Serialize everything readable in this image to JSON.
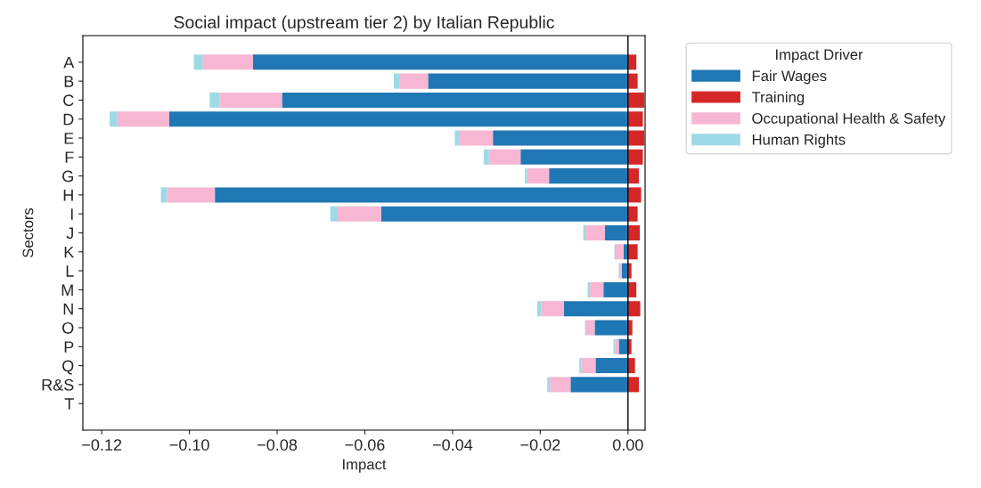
{
  "chart_data": {
    "type": "bar",
    "orientation": "horizontal",
    "stacked": true,
    "title": "Social impact (upstream tier 2) by Italian Republic",
    "xlabel": "Impact",
    "ylabel": "Sectors",
    "legend_title": "Impact Driver",
    "legend": "top right",
    "grid": false,
    "categories": [
      "A",
      "B",
      "C",
      "D",
      "E",
      "F",
      "G",
      "H",
      "I",
      "J",
      "K",
      "L",
      "M",
      "N",
      "O",
      "P",
      "Q",
      "R&S",
      "T"
    ],
    "series": [
      {
        "name": "Fair Wages",
        "color": "#1f77b4",
        "values": [
          -0.0855,
          -0.0456,
          -0.0789,
          -0.1046,
          -0.0308,
          -0.0245,
          -0.018,
          -0.0942,
          -0.0563,
          -0.0053,
          -0.001,
          -0.0014,
          -0.0056,
          -0.0146,
          -0.0076,
          -0.0021,
          -0.0074,
          -0.0131,
          0
        ]
      },
      {
        "name": "Training",
        "color": "#d62728",
        "values": [
          0.0019,
          0.0022,
          0.0037,
          0.0034,
          0.0037,
          0.0034,
          0.0025,
          0.003,
          0.0022,
          0.0027,
          0.0022,
          0.0008,
          0.0019,
          0.0028,
          0.001,
          0.0008,
          0.0016,
          0.0025,
          0
        ]
      },
      {
        "name": "Occupational Health & Safety",
        "color": "#f7b6d2",
        "values": [
          -0.0115,
          -0.0066,
          -0.0142,
          -0.0118,
          -0.0076,
          -0.0072,
          -0.005,
          -0.0109,
          -0.0099,
          -0.0044,
          -0.0018,
          -0.0004,
          -0.0033,
          -0.0052,
          -0.0019,
          -0.0008,
          -0.0032,
          -0.0047,
          0
        ]
      },
      {
        "name": "Human Rights",
        "color": "#9edae5",
        "values": [
          -0.002,
          -0.0012,
          -0.0023,
          -0.0018,
          -0.0011,
          -0.0012,
          -0.0005,
          -0.0014,
          -0.0017,
          -0.0005,
          -0.0003,
          -0.0003,
          -0.0003,
          -0.0009,
          -0.0003,
          -0.0004,
          -0.0005,
          -0.0006,
          0
        ]
      }
    ],
    "xlim": [
      -0.1243,
      0.0039
    ],
    "xticks": [
      {
        "value": -0.12,
        "label": "−0.12"
      },
      {
        "value": -0.1,
        "label": "−0.10"
      },
      {
        "value": -0.08,
        "label": "−0.08"
      },
      {
        "value": -0.06,
        "label": "−0.06"
      },
      {
        "value": -0.04,
        "label": "−0.04"
      },
      {
        "value": -0.02,
        "label": "−0.02"
      },
      {
        "value": 0,
        "label": "0.00"
      }
    ],
    "ref_lines": [
      {
        "axis": "x",
        "value": 0,
        "color": "#000000"
      }
    ]
  }
}
